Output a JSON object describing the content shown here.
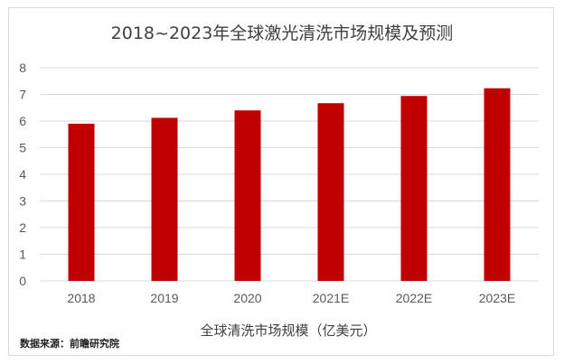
{
  "chart_data": {
    "type": "bar",
    "title": "2018~2023年全球激光清洗市场规模及预测",
    "categories": [
      "2018",
      "2019",
      "2020",
      "2021E",
      "2022E",
      "2023E"
    ],
    "values": [
      5.9,
      6.12,
      6.4,
      6.67,
      6.94,
      7.23
    ],
    "xlabel": "全球清洗市场规模（亿美元）",
    "ylabel": "",
    "ylim": [
      0,
      8
    ],
    "yticks": [
      "0",
      "1",
      "2",
      "3",
      "4",
      "5",
      "6",
      "7",
      "8"
    ],
    "grid": true,
    "legend": "none",
    "bar_color": "#c00000",
    "grid_color": "#d9d9d9"
  },
  "source_note": "数据来源：前瞻研究院"
}
